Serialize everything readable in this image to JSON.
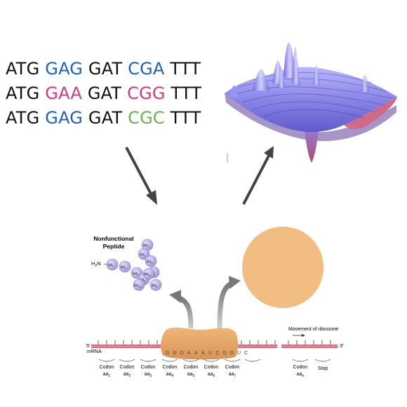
{
  "sequences": [
    [
      {
        "t": "ATG",
        "c": "#111111"
      },
      {
        "t": "GAG",
        "c": "#1f5fbf"
      },
      {
        "t": "GAT",
        "c": "#111111"
      },
      {
        "t": "CGA",
        "c": "#1f5fbf"
      },
      {
        "t": "TTT",
        "c": "#111111"
      }
    ],
    [
      {
        "t": "ATG",
        "c": "#111111"
      },
      {
        "t": "GAA",
        "c": "#d23c7a"
      },
      {
        "t": "GAT",
        "c": "#111111"
      },
      {
        "t": "CGG",
        "c": "#d23c7a"
      },
      {
        "t": "TTT",
        "c": "#111111"
      }
    ],
    [
      {
        "t": "ATG",
        "c": "#111111"
      },
      {
        "t": "GAG",
        "c": "#1f5fbf"
      },
      {
        "t": "GAT",
        "c": "#111111"
      },
      {
        "t": "CGC",
        "c": "#6ab04c"
      },
      {
        "t": "TTT",
        "c": "#111111"
      }
    ]
  ],
  "peptide": {
    "title_line1": "Nonfunctional",
    "title_line2": "Peptide",
    "terminus": "H",
    "terminus_sub": "2",
    "terminus_rest": "N",
    "bead_label": "aa",
    "bead_subs": [
      "1",
      "2",
      "3",
      "4",
      "5",
      "6",
      "7",
      "8",
      "9",
      "10",
      "11"
    ]
  },
  "mrna": {
    "five_prime": "5'",
    "three_prime": "3'",
    "label": "mRNA",
    "bases": [
      "G",
      "G",
      "G",
      "A",
      "A",
      "A",
      "U",
      "C",
      "G",
      "G",
      "U",
      "C"
    ],
    "movement_label": "Movement of ribosome",
    "codons": [
      {
        "label": "Codon",
        "aa": "aa",
        "sub": "1"
      },
      {
        "label": "Codon",
        "aa": "aa",
        "sub": "2"
      },
      {
        "label": "Codon",
        "aa": "aa",
        "sub": "3"
      },
      {
        "label": "Codon",
        "aa": "aa",
        "sub": "4"
      },
      {
        "label": "Codon",
        "aa": "aa",
        "sub": "5"
      },
      {
        "label": "Codon",
        "aa": "aa",
        "sub": "6"
      },
      {
        "label": "Codon",
        "aa": "aa",
        "sub": "7"
      },
      {
        "label": "Codon",
        "aa": "aa",
        "sub": "n"
      }
    ],
    "stop_label": "Stop"
  },
  "colors": {
    "arrow": "#444444",
    "ribosome": "#e8a765",
    "protein_circle": "#f1bd82",
    "bead": "#b5a8e2",
    "mrna": "#e2606f",
    "surface_top": "#8a86e8",
    "surface_bottom": "#d96a7a"
  }
}
